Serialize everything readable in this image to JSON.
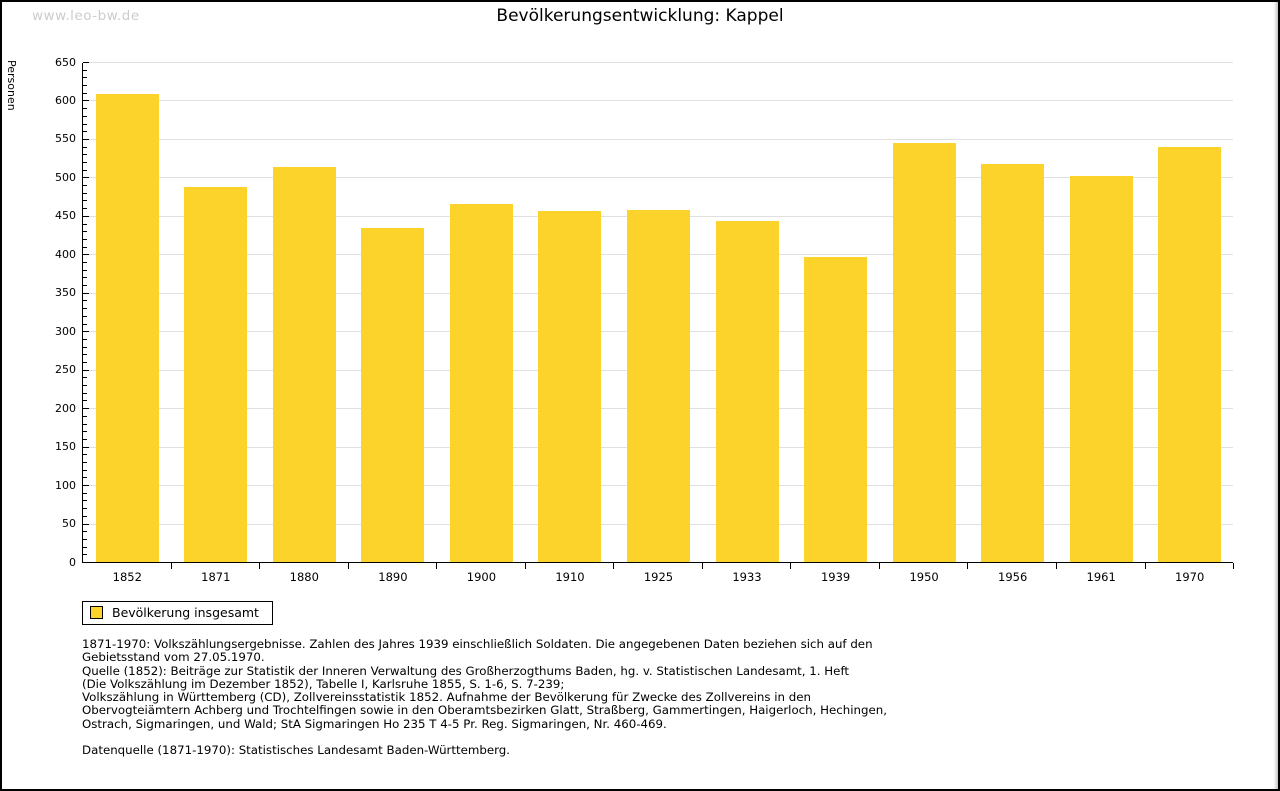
{
  "watermark": "www.leo-bw.de",
  "header": {
    "title": "Bevölkerungsentwicklung: Kappel"
  },
  "chart_data": {
    "type": "bar",
    "title": "Bevölkerungsentwicklung: Kappel",
    "xlabel": "",
    "ylabel": "Personen",
    "categories": [
      "1852",
      "1871",
      "1880",
      "1890",
      "1900",
      "1910",
      "1925",
      "1933",
      "1939",
      "1950",
      "1956",
      "1961",
      "1970"
    ],
    "values": [
      608,
      488,
      514,
      434,
      465,
      456,
      458,
      444,
      396,
      545,
      517,
      502,
      539
    ],
    "series_name": "Bevölkerung insgesamt",
    "ylim": [
      0,
      650
    ],
    "ytick_step": 50,
    "yminor_step": 10,
    "grid": true,
    "legend_position": "bottom-left",
    "bar_color": "#fcd32b",
    "gridline_color": "#e0e0e0",
    "axis_color": "#000000"
  },
  "legend": {
    "label": "Bevölkerung insgesamt"
  },
  "footer": {
    "lines": [
      "1871-1970: Volkszählungsergebnisse. Zahlen des Jahres 1939 einschließlich Soldaten. Die angegebenen Daten beziehen sich auf den",
      "Gebietsstand vom 27.05.1970.",
      "Quelle (1852): Beiträge zur Statistik der Inneren Verwaltung des Großherzogthums Baden, hg. v. Statistischen Landesamt, 1. Heft",
      "(Die Volkszählung im Dezember 1852), Tabelle I, Karlsruhe 1855, S. 1-6, S. 7-239;",
      "Volkszählung in Württemberg (CD), Zollvereinsstatistik 1852. Aufnahme der Bevölkerung für Zwecke des Zollvereins in den",
      "Obervogteiämtern Achberg und Trochtelfingen sowie in den Oberamtsbezirken Glatt, Straßberg, Gammertingen, Haigerloch, Hechingen,",
      "Ostrach, Sigmaringen, und Wald; StA Sigmaringen Ho 235 T 4-5 Pr. Reg. Sigmaringen, Nr. 460-469."
    ],
    "datasource": "Datenquelle (1871-1970): Statistisches Landesamt Baden-Württemberg."
  }
}
